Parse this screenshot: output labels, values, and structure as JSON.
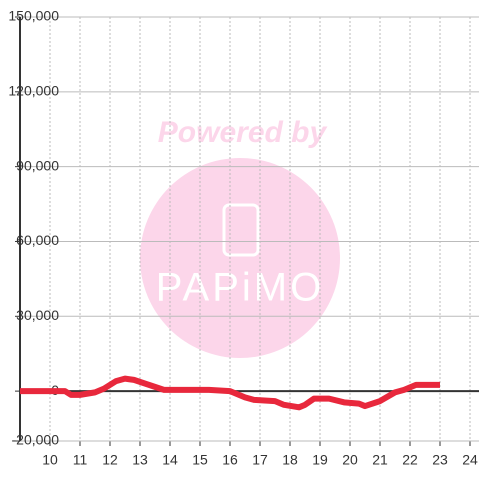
{
  "chart_data": {
    "type": "line",
    "x": [
      9,
      10.5,
      10.7,
      11,
      11.5,
      11.8,
      12.2,
      12.5,
      12.8,
      13.3,
      13.8,
      15,
      15.3,
      16,
      16.5,
      16.8,
      17.5,
      17.8,
      18.3,
      18.5,
      18.8,
      19.3,
      19.8,
      20.3,
      20.5,
      21,
      21.5,
      21.8,
      22.2,
      23
    ],
    "series": [
      {
        "color": "#e8283c",
        "values": [
          0,
          0,
          -1500,
          -1500,
          -500,
          1000,
          4000,
          5000,
          4500,
          2500,
          500,
          500,
          500,
          0,
          -2500,
          -3500,
          -4000,
          -5500,
          -6500,
          -5500,
          -3000,
          -3000,
          -4500,
          -5000,
          -6000,
          -4000,
          -500,
          500,
          2500,
          2500
        ]
      }
    ],
    "xlim": [
      9,
      24.3
    ],
    "xticks": [
      10,
      11,
      12,
      13,
      14,
      15,
      16,
      17,
      18,
      19,
      20,
      21,
      22,
      23,
      24
    ],
    "ylim": [
      -20000,
      150000
    ],
    "yticks": [
      {
        "value": -20000,
        "label": "-20,000"
      },
      0,
      {
        "value": 30000,
        "label": "30,000"
      },
      {
        "value": 60000,
        "label": "60,000"
      },
      {
        "value": 90000,
        "label": "90,000"
      },
      {
        "value": 120000,
        "label": "120,000"
      },
      {
        "value": 150000,
        "label": "150,000"
      }
    ],
    "grid": true
  },
  "watermark": {
    "text": "Powered by",
    "logo": "PAPiMO"
  }
}
